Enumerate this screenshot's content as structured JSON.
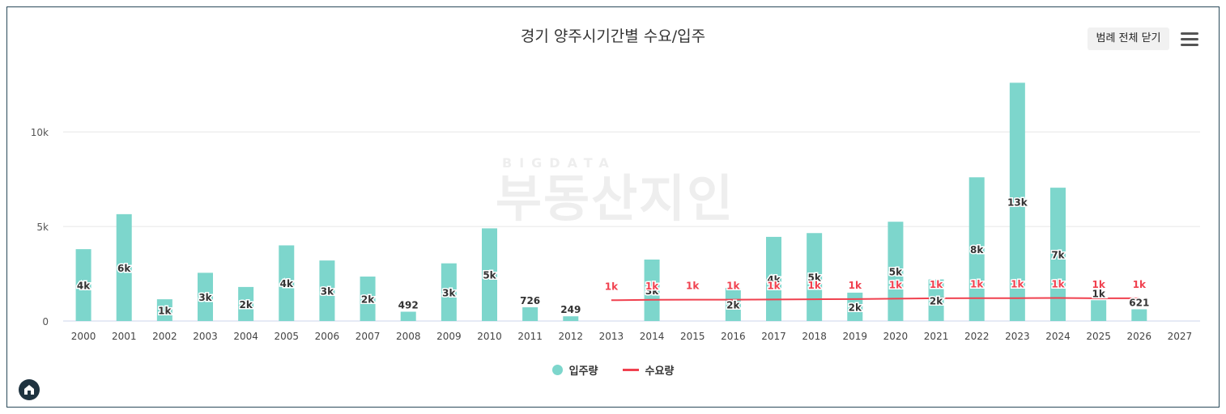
{
  "title": "경기 양주시기간별 수요/입주",
  "legend_toggle_label": "범례 전체 닫기",
  "icons": {
    "menu": "hamburger-menu-icon",
    "logo": "home-logo-icon"
  },
  "watermark": {
    "sub": "BIGDATA",
    "main": "부동산지인"
  },
  "colors": {
    "bar": "#7dd6cc",
    "line": "#f0414f",
    "label_red": "#f0414f"
  },
  "legend": [
    {
      "label": "입주량",
      "color": "#7dd6cc",
      "shape": "dot"
    },
    {
      "label": "수요량",
      "color": "#f0414f",
      "shape": "line"
    }
  ],
  "chart_data": {
    "type": "bar",
    "title": "경기 양주시기간별 수요/입주",
    "categories": [
      "2000",
      "2001",
      "2002",
      "2003",
      "2004",
      "2005",
      "2006",
      "2007",
      "2008",
      "2009",
      "2010",
      "2011",
      "2012",
      "2013",
      "2014",
      "2015",
      "2016",
      "2017",
      "2018",
      "2019",
      "2020",
      "2021",
      "2022",
      "2023",
      "2024",
      "2025",
      "2026",
      "2027"
    ],
    "ylim": [
      0,
      12700
    ],
    "yticks": [
      0,
      5000,
      10000
    ],
    "ytick_labels": [
      "0",
      "5k",
      "10k"
    ],
    "grid": true,
    "legend_position": "bottom",
    "series": [
      {
        "name": "입주량",
        "type": "bar",
        "values": [
          3800,
          5650,
          1150,
          2550,
          1800,
          4000,
          3200,
          2350,
          492,
          3050,
          4900,
          726,
          249,
          null,
          3250,
          null,
          1750,
          4450,
          4650,
          1500,
          5250,
          2200,
          7600,
          12600,
          7050,
          1100,
          621,
          null
        ],
        "labels": [
          "4k",
          "6k",
          "1k",
          "3k",
          "2k",
          "4k",
          "3k",
          "2k",
          "492",
          "3k",
          "5k",
          "726",
          "249",
          "",
          "3k",
          "",
          "2k",
          "4k",
          "5k",
          "2k",
          "5k",
          "2k",
          "8k",
          "13k",
          "7k",
          "1k",
          "621",
          ""
        ]
      },
      {
        "name": "수요량",
        "type": "line",
        "values": [
          null,
          null,
          null,
          null,
          null,
          null,
          null,
          null,
          null,
          null,
          null,
          null,
          null,
          1100,
          1120,
          1130,
          1130,
          1140,
          1150,
          1160,
          1180,
          1200,
          1210,
          1210,
          1220,
          1200,
          1200,
          null
        ],
        "labels": [
          "",
          "",
          "",
          "",
          "",
          "",
          "",
          "",
          "",
          "",
          "",
          "",
          "",
          "1k",
          "1k",
          "1k",
          "1k",
          "1k",
          "1k",
          "1k",
          "1k",
          "1k",
          "1k",
          "1k",
          "1k",
          "1k",
          "1k",
          ""
        ]
      }
    ]
  }
}
